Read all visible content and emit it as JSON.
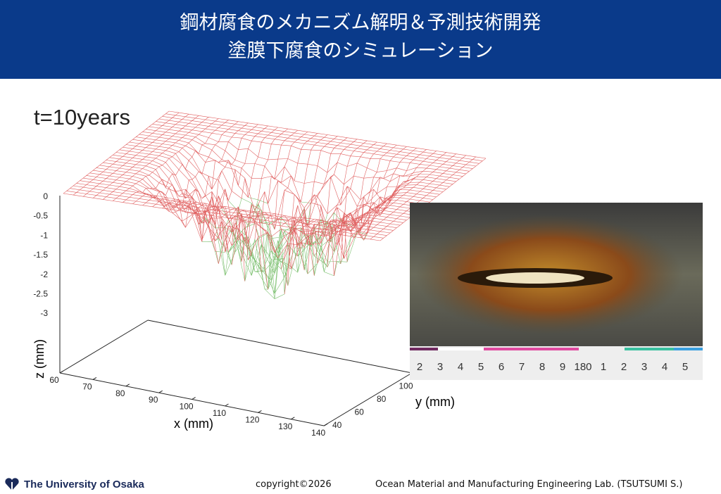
{
  "header": {
    "title_lines": [
      "鋼材腐食のメカニズム解明＆予測技術開発",
      "塗膜下腐食のシミュレーション"
    ]
  },
  "plot": {
    "time_label": "t=10years",
    "z_ticks": [
      "0",
      "-0.5",
      "-1",
      "-1.5",
      "-2",
      "-2.5",
      "-3"
    ],
    "z_label": "z (mm)",
    "x_ticks": [
      "60",
      "70",
      "80",
      "90",
      "100",
      "110",
      "120",
      "130",
      "140"
    ],
    "x_label": "x (mm)",
    "y_ticks": [
      "40",
      "60",
      "80",
      "100"
    ],
    "y_label": "y (mm)"
  },
  "photo": {
    "ruler_labels": [
      "2",
      "3",
      "4",
      "5",
      "6",
      "7",
      "8",
      "9",
      "180",
      "1",
      "2",
      "3",
      "4",
      "5"
    ]
  },
  "footer": {
    "university": "The University of Osaka",
    "copyright": "copyright©2026",
    "lab": "Ocean Material and Manufacturing Engineering Lab. (TSUTSUMI S.)"
  }
}
